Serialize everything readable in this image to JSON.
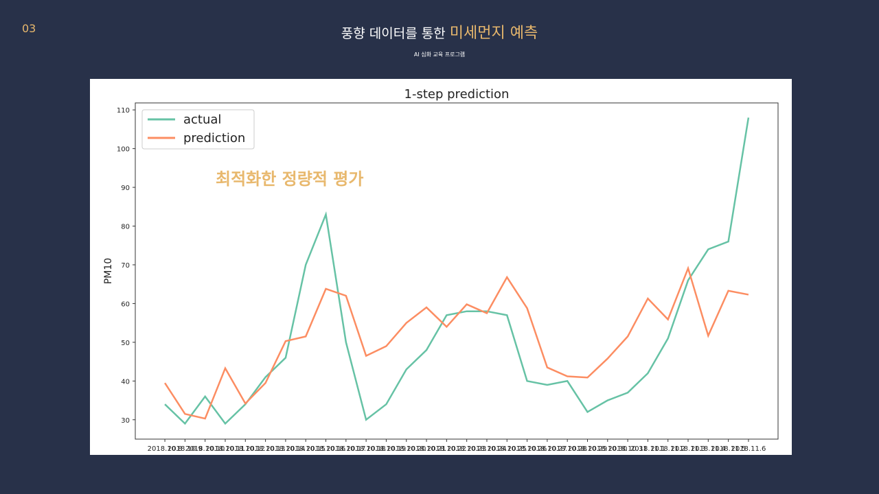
{
  "page_number": "03",
  "header": {
    "title": "풍향 데이터를 통한",
    "title_highlight": "미세먼지 예측",
    "subtitle": "AI 심화 교육 프로그램"
  },
  "chart_data": {
    "type": "line",
    "title": "1-step prediction",
    "y_label": "PM10",
    "annotation": "최적화한 정량적 평가",
    "categories": [
      "2018.10.8",
      "2018.10.9",
      "2018.10.10",
      "2018.10.11",
      "2018.10.12",
      "2018.10.13",
      "2018.10.14",
      "2018.10.15",
      "2018.10.16",
      "2018.10.17",
      "2018.10.18",
      "2018.10.19",
      "2018.10.20",
      "2018.10.21",
      "2018.10.22",
      "2018.10.23",
      "2018.10.24",
      "2018.10.25",
      "2018.10.26",
      "2018.10.27",
      "2018.10.28",
      "2018.10.29",
      "2018.10.30",
      "2018.10.31",
      "2018.11.1",
      "2018.11.2",
      "2018.11.3",
      "2018.11.4",
      "2018.11.5",
      "2018.11.6"
    ],
    "series": [
      {
        "name": "actual",
        "color": "#66c2a5",
        "values": [
          34,
          29,
          36,
          29,
          34,
          41,
          46,
          70,
          83,
          50,
          30,
          34,
          43,
          48,
          57,
          58,
          58,
          57,
          40,
          39,
          40,
          32,
          35,
          37,
          42,
          51,
          66,
          74,
          76,
          108
        ]
      },
      {
        "name": "prediction",
        "color": "#fc8d62",
        "values": [
          39.5,
          31.5,
          30.3,
          43.3,
          34.2,
          39.5,
          50.3,
          51.5,
          63.8,
          62,
          46.5,
          49,
          55,
          59,
          54,
          59.8,
          57.5,
          66.8,
          58.8,
          43.5,
          41.2,
          40.9,
          45.8,
          51.5,
          61.3,
          55.9,
          69.1,
          51.7,
          63.3,
          62.3
        ]
      }
    ],
    "ylim": [
      25,
      111.8
    ],
    "yticks": [
      30,
      40,
      50,
      60,
      70,
      80,
      90,
      100,
      110
    ],
    "legend": "upper left"
  }
}
